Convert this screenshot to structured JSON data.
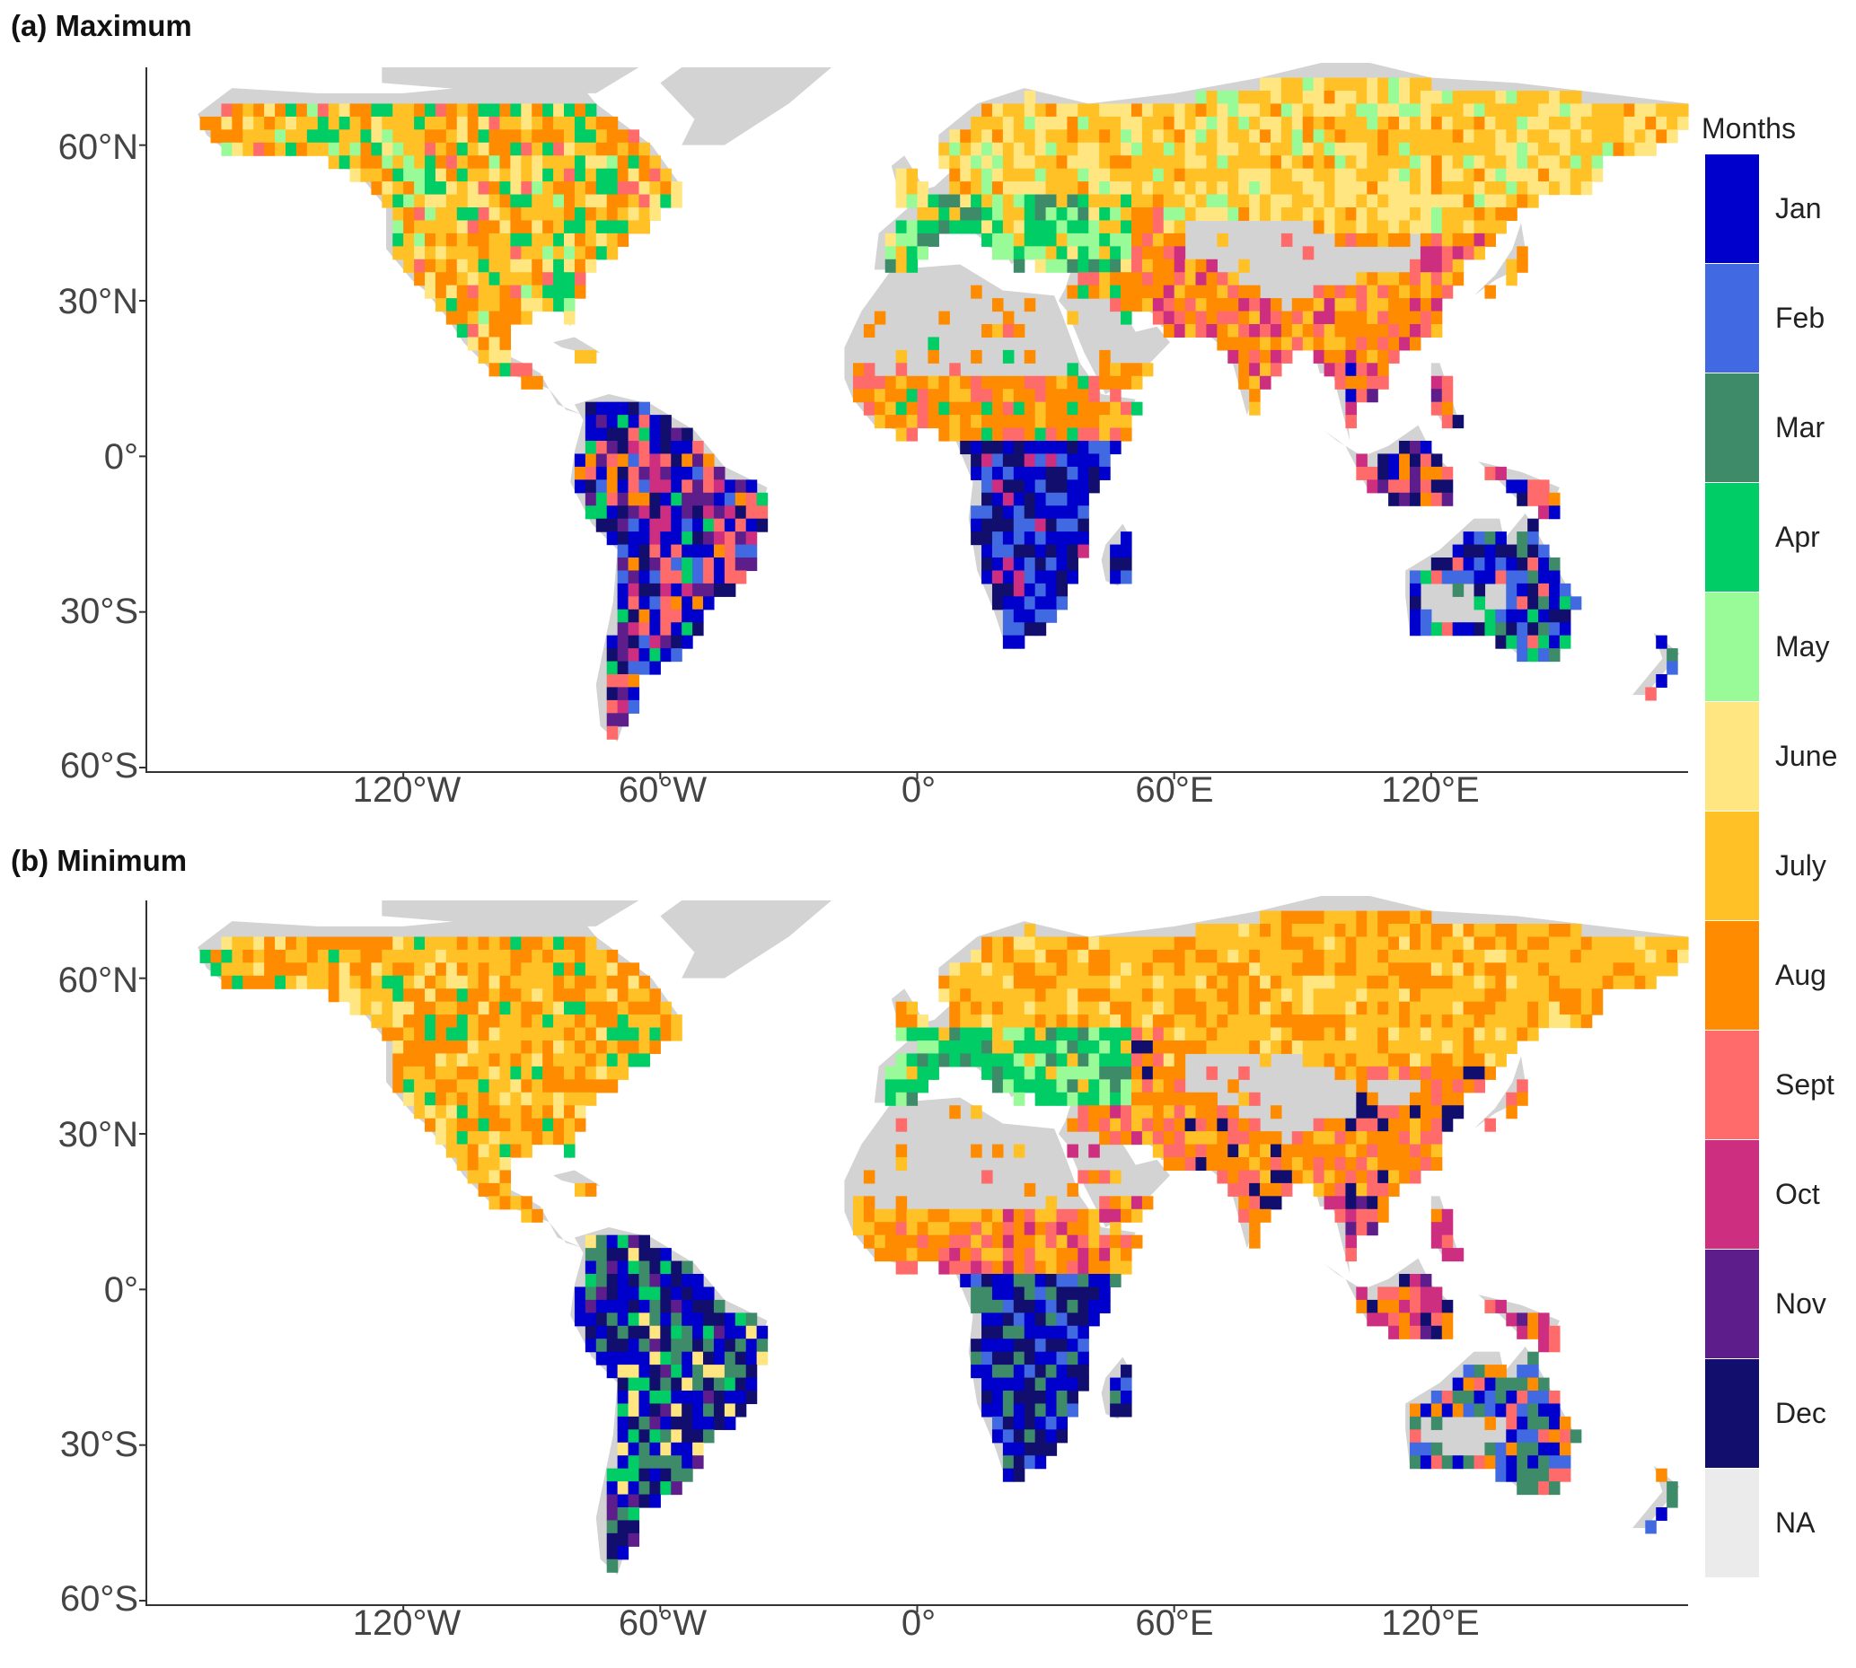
{
  "panels": [
    {
      "id": "max",
      "title": "(a) Maximum"
    },
    {
      "id": "min",
      "title": "(b) Minimum"
    }
  ],
  "axes": {
    "y_ticks": [
      "60°N",
      "30°N",
      "0°",
      "30°S",
      "60°S"
    ],
    "x_ticks": [
      "120°W",
      "60°W",
      "0°",
      "60°E",
      "120°E"
    ]
  },
  "legend": {
    "title": "Months",
    "items": [
      {
        "label": "Jan",
        "color": "#0000CD"
      },
      {
        "label": "Feb",
        "color": "#4169E1"
      },
      {
        "label": "Mar",
        "color": "#3E8B6A"
      },
      {
        "label": "Apr",
        "color": "#00CD66"
      },
      {
        "label": "May",
        "color": "#98FB98"
      },
      {
        "label": "June",
        "color": "#FFE680"
      },
      {
        "label": "July",
        "color": "#FFC125"
      },
      {
        "label": "Aug",
        "color": "#FF8C00"
      },
      {
        "label": "Sept",
        "color": "#FF6A6A"
      },
      {
        "label": "Oct",
        "color": "#CD2E7F"
      },
      {
        "label": "Nov",
        "color": "#5D1E8B"
      },
      {
        "label": "Dec",
        "color": "#110E6E"
      },
      {
        "label": "NA",
        "color": "#EBEBEB"
      }
    ]
  },
  "land_color": "#D3D3D3"
}
